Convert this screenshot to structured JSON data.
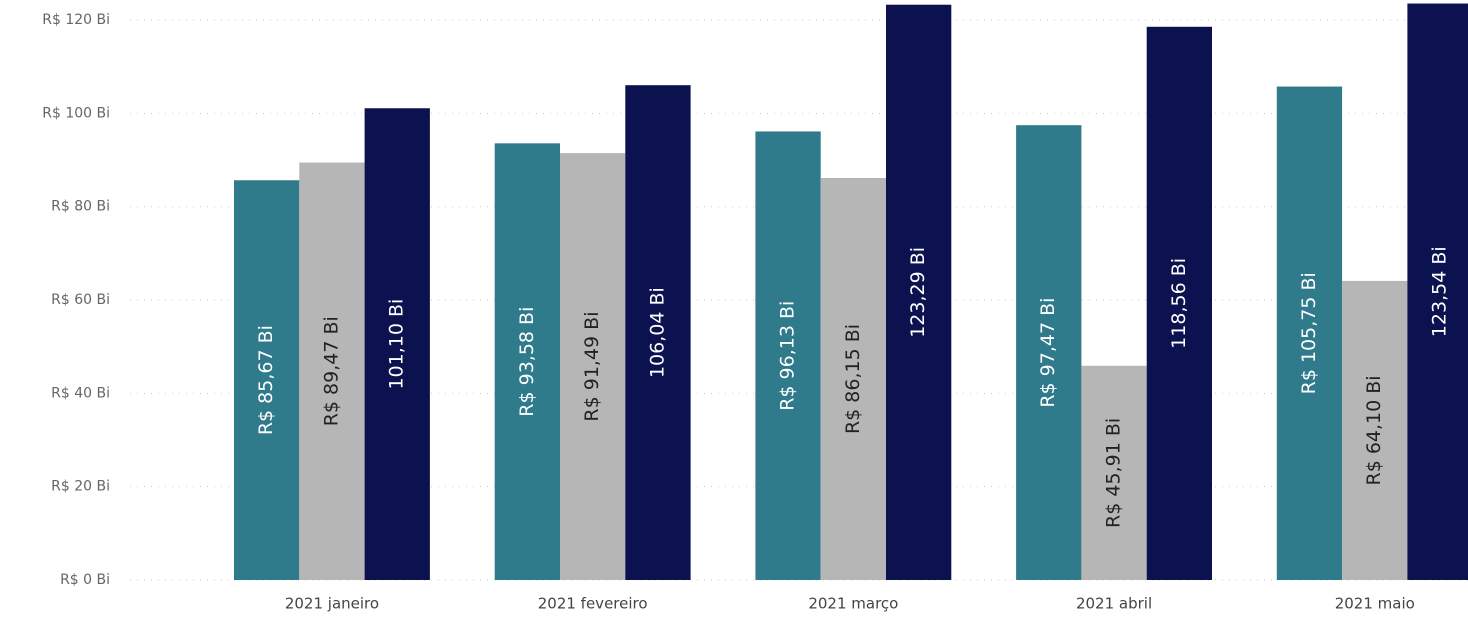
{
  "chart_data": {
    "type": "bar",
    "categories": [
      "2021 janeiro",
      "2021 fevereiro",
      "2021 março",
      "2021 abril",
      "2021 maio"
    ],
    "series": [
      {
        "color": "#2f7a8b",
        "values": [
          85.67,
          93.58,
          96.13,
          97.47,
          105.75
        ],
        "value_labels": [
          "R$ 85,67 Bi",
          "R$ 93,58 Bi",
          "R$ 96,13 Bi",
          "R$ 97,47 Bi",
          "R$ 105,75 Bi"
        ]
      },
      {
        "color": "#b6b6b6",
        "values": [
          89.47,
          91.49,
          86.15,
          45.91,
          64.1
        ],
        "value_labels": [
          "R$ 89,47 Bi",
          "R$ 91,49 Bi",
          "R$ 86,15 Bi",
          "R$ 45,91 Bi",
          "R$ 64,10 Bi"
        ]
      },
      {
        "color": "#0c124f",
        "values": [
          101.1,
          106.04,
          123.29,
          118.56,
          123.54
        ],
        "value_labels": [
          "101,10 Bi",
          "106,04 Bi",
          "123,29 Bi",
          "118,56 Bi",
          "123,54 Bi"
        ]
      }
    ],
    "ylim": [
      0,
      124.3
    ],
    "yticks": [
      {
        "value": 0,
        "label": "R$ 0 Bi"
      },
      {
        "value": 20,
        "label": "R$ 20 Bi"
      },
      {
        "value": 40,
        "label": "R$ 40 Bi"
      },
      {
        "value": 60,
        "label": "R$ 60 Bi"
      },
      {
        "value": 80,
        "label": "R$ 80 Bi"
      },
      {
        "value": 100,
        "label": "R$ 100 Bi"
      },
      {
        "value": 120,
        "label": "R$ 120 Bi"
      }
    ],
    "grid": true
  }
}
